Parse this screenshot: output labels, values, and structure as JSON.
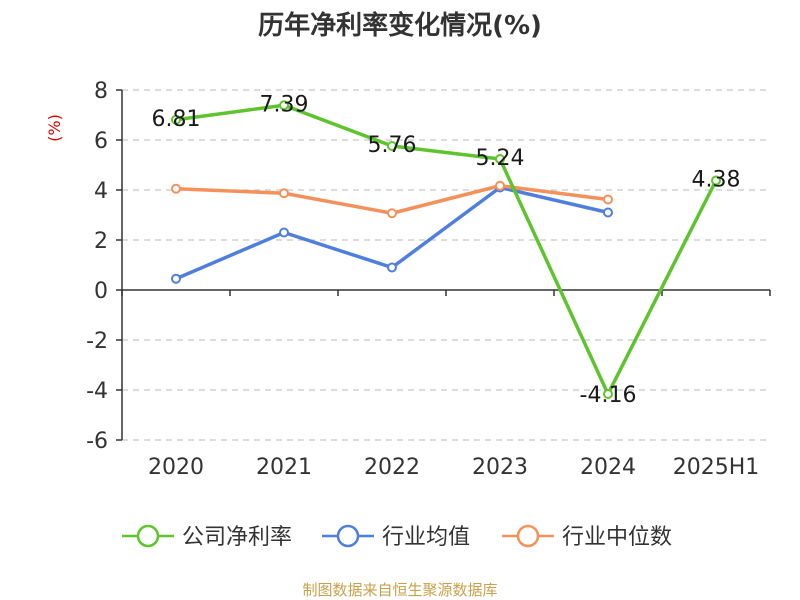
{
  "chart_data": {
    "type": "line",
    "title": "历年净利率变化情况(%)",
    "ylabel": "(%)",
    "xlabel": "",
    "categories": [
      "2020",
      "2021",
      "2022",
      "2023",
      "2024",
      "2025H1"
    ],
    "ylim": [
      -6,
      8
    ],
    "yticks": [
      8,
      6,
      4,
      2,
      0,
      -2,
      -4,
      -6
    ],
    "grid": true,
    "legend_position": "bottom",
    "series": [
      {
        "name": "公司净利率",
        "color": "#5ec42d",
        "values": [
          6.81,
          7.39,
          5.76,
          5.24,
          -4.16,
          4.38
        ],
        "labels": [
          "6.81",
          "7.39",
          "5.76",
          "5.24",
          "-4.16",
          "4.38"
        ]
      },
      {
        "name": "行业均值",
        "color": "#4f7fdc",
        "values": [
          0.45,
          2.3,
          0.9,
          4.1,
          3.1,
          null
        ]
      },
      {
        "name": "行业中位数",
        "color": "#f4915a",
        "values": [
          4.05,
          3.87,
          3.07,
          4.17,
          3.62,
          null
        ]
      }
    ],
    "source": "制图数据来自恒生聚源数据库"
  }
}
